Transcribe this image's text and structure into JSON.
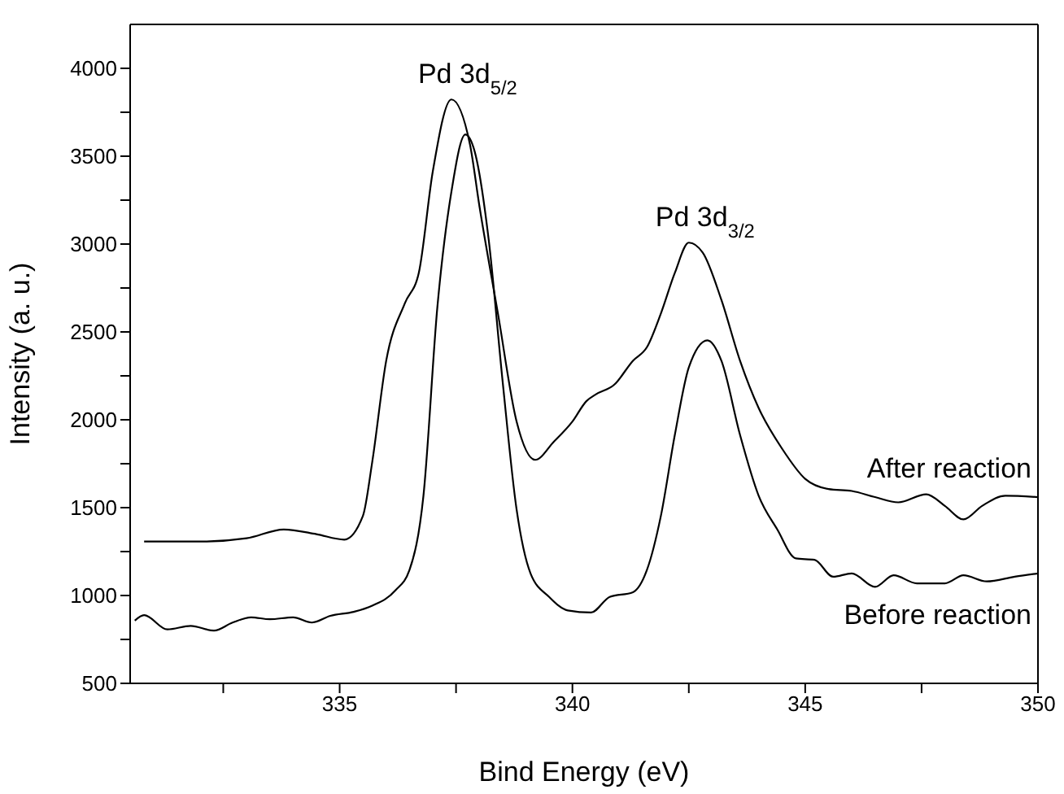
{
  "chart_data": {
    "type": "line",
    "xlabel": "Bind Energy (eV)",
    "ylabel": "Intensity (a. u.)",
    "xlim": [
      330.5,
      350
    ],
    "xticks": [
      {
        "value": 332.5,
        "label": null
      },
      335,
      {
        "value": 337.5,
        "label": null
      },
      340,
      {
        "value": 342.5,
        "label": null
      },
      345,
      {
        "value": 347.5,
        "label": null
      },
      350
    ],
    "ylim": [
      500,
      4250
    ],
    "yticks": [
      500,
      {
        "value": 750,
        "label": null
      },
      1000,
      {
        "value": 1250,
        "label": null
      },
      1500,
      {
        "value": 1750,
        "label": null
      },
      2000,
      {
        "value": 2250,
        "label": null
      },
      2500,
      {
        "value": 2750,
        "label": null
      },
      3000,
      {
        "value": 3250,
        "label": null
      },
      3500,
      {
        "value": 3750,
        "label": null
      },
      4000
    ],
    "marker": "none",
    "line_style": "solid",
    "annotations": [
      {
        "text": "Pd 3d$_{5/2}$",
        "x": 337.4,
        "y": 3823
      },
      {
        "text": "Pd 3d$_{3/2}$",
        "x": 342.5,
        "y": 3008
      }
    ],
    "series": [
      {
        "name": "After reaction",
        "color": "#000000",
        "x": [
          330.8,
          332,
          333,
          333.8,
          334.5,
          335.1,
          335.5,
          335.7,
          336,
          336.4,
          336.7,
          337,
          337.4,
          337.8,
          338,
          338.4,
          338.8,
          339.2,
          339.6,
          340,
          340.3,
          340.5,
          340.9,
          341.3,
          341.6,
          341.9,
          342.2,
          342.5,
          342.8,
          343.2,
          343.6,
          344,
          344.5,
          345,
          345.5,
          346,
          346.5,
          347,
          347.6,
          348,
          348.4,
          348.8,
          349.3,
          350
        ],
        "values": [
          1307,
          1307,
          1326,
          1376,
          1349,
          1318,
          1453,
          1760,
          2336,
          2663,
          2836,
          3412,
          3823,
          3566,
          3220,
          2605,
          1991,
          1772,
          1875,
          1990,
          2106,
          2144,
          2200,
          2336,
          2413,
          2605,
          2836,
          3008,
          2951,
          2682,
          2336,
          2067,
          1837,
          1664,
          1606,
          1595,
          1560,
          1530,
          1576,
          1510,
          1433,
          1510,
          1568,
          1560
        ]
      },
      {
        "name": "Before reaction",
        "color": "#000000",
        "x": [
          330.6,
          330.8,
          331.3,
          331.8,
          332.3,
          332.7,
          333.1,
          333.5,
          334,
          334.4,
          334.8,
          335.3,
          335.7,
          336.2,
          336.5,
          336.8,
          337.1,
          337.4,
          337.7,
          337.9,
          338.2,
          338.5,
          338.8,
          339.1,
          339.5,
          339.9,
          340.4,
          340.8,
          341.3,
          341.6,
          341.9,
          342.2,
          342.5,
          342.9,
          343.2,
          343.6,
          344,
          344.4,
          344.8,
          345.2,
          345.6,
          346,
          346.5,
          346.9,
          347.4,
          348,
          348.4,
          348.9,
          349.5,
          350
        ],
        "values": [
          857,
          888,
          807,
          827,
          800,
          846,
          876,
          865,
          876,
          846,
          884,
          907,
          942,
          1030,
          1145,
          1568,
          2644,
          3297,
          3623,
          3527,
          3028,
          2221,
          1491,
          1126,
          992,
          915,
          903,
          992,
          1019,
          1145,
          1453,
          1914,
          2298,
          2452,
          2336,
          1914,
          1568,
          1376,
          1211,
          1203,
          1107,
          1126,
          1049,
          1115,
          1069,
          1069,
          1115,
          1080,
          1107,
          1126
        ]
      }
    ]
  }
}
